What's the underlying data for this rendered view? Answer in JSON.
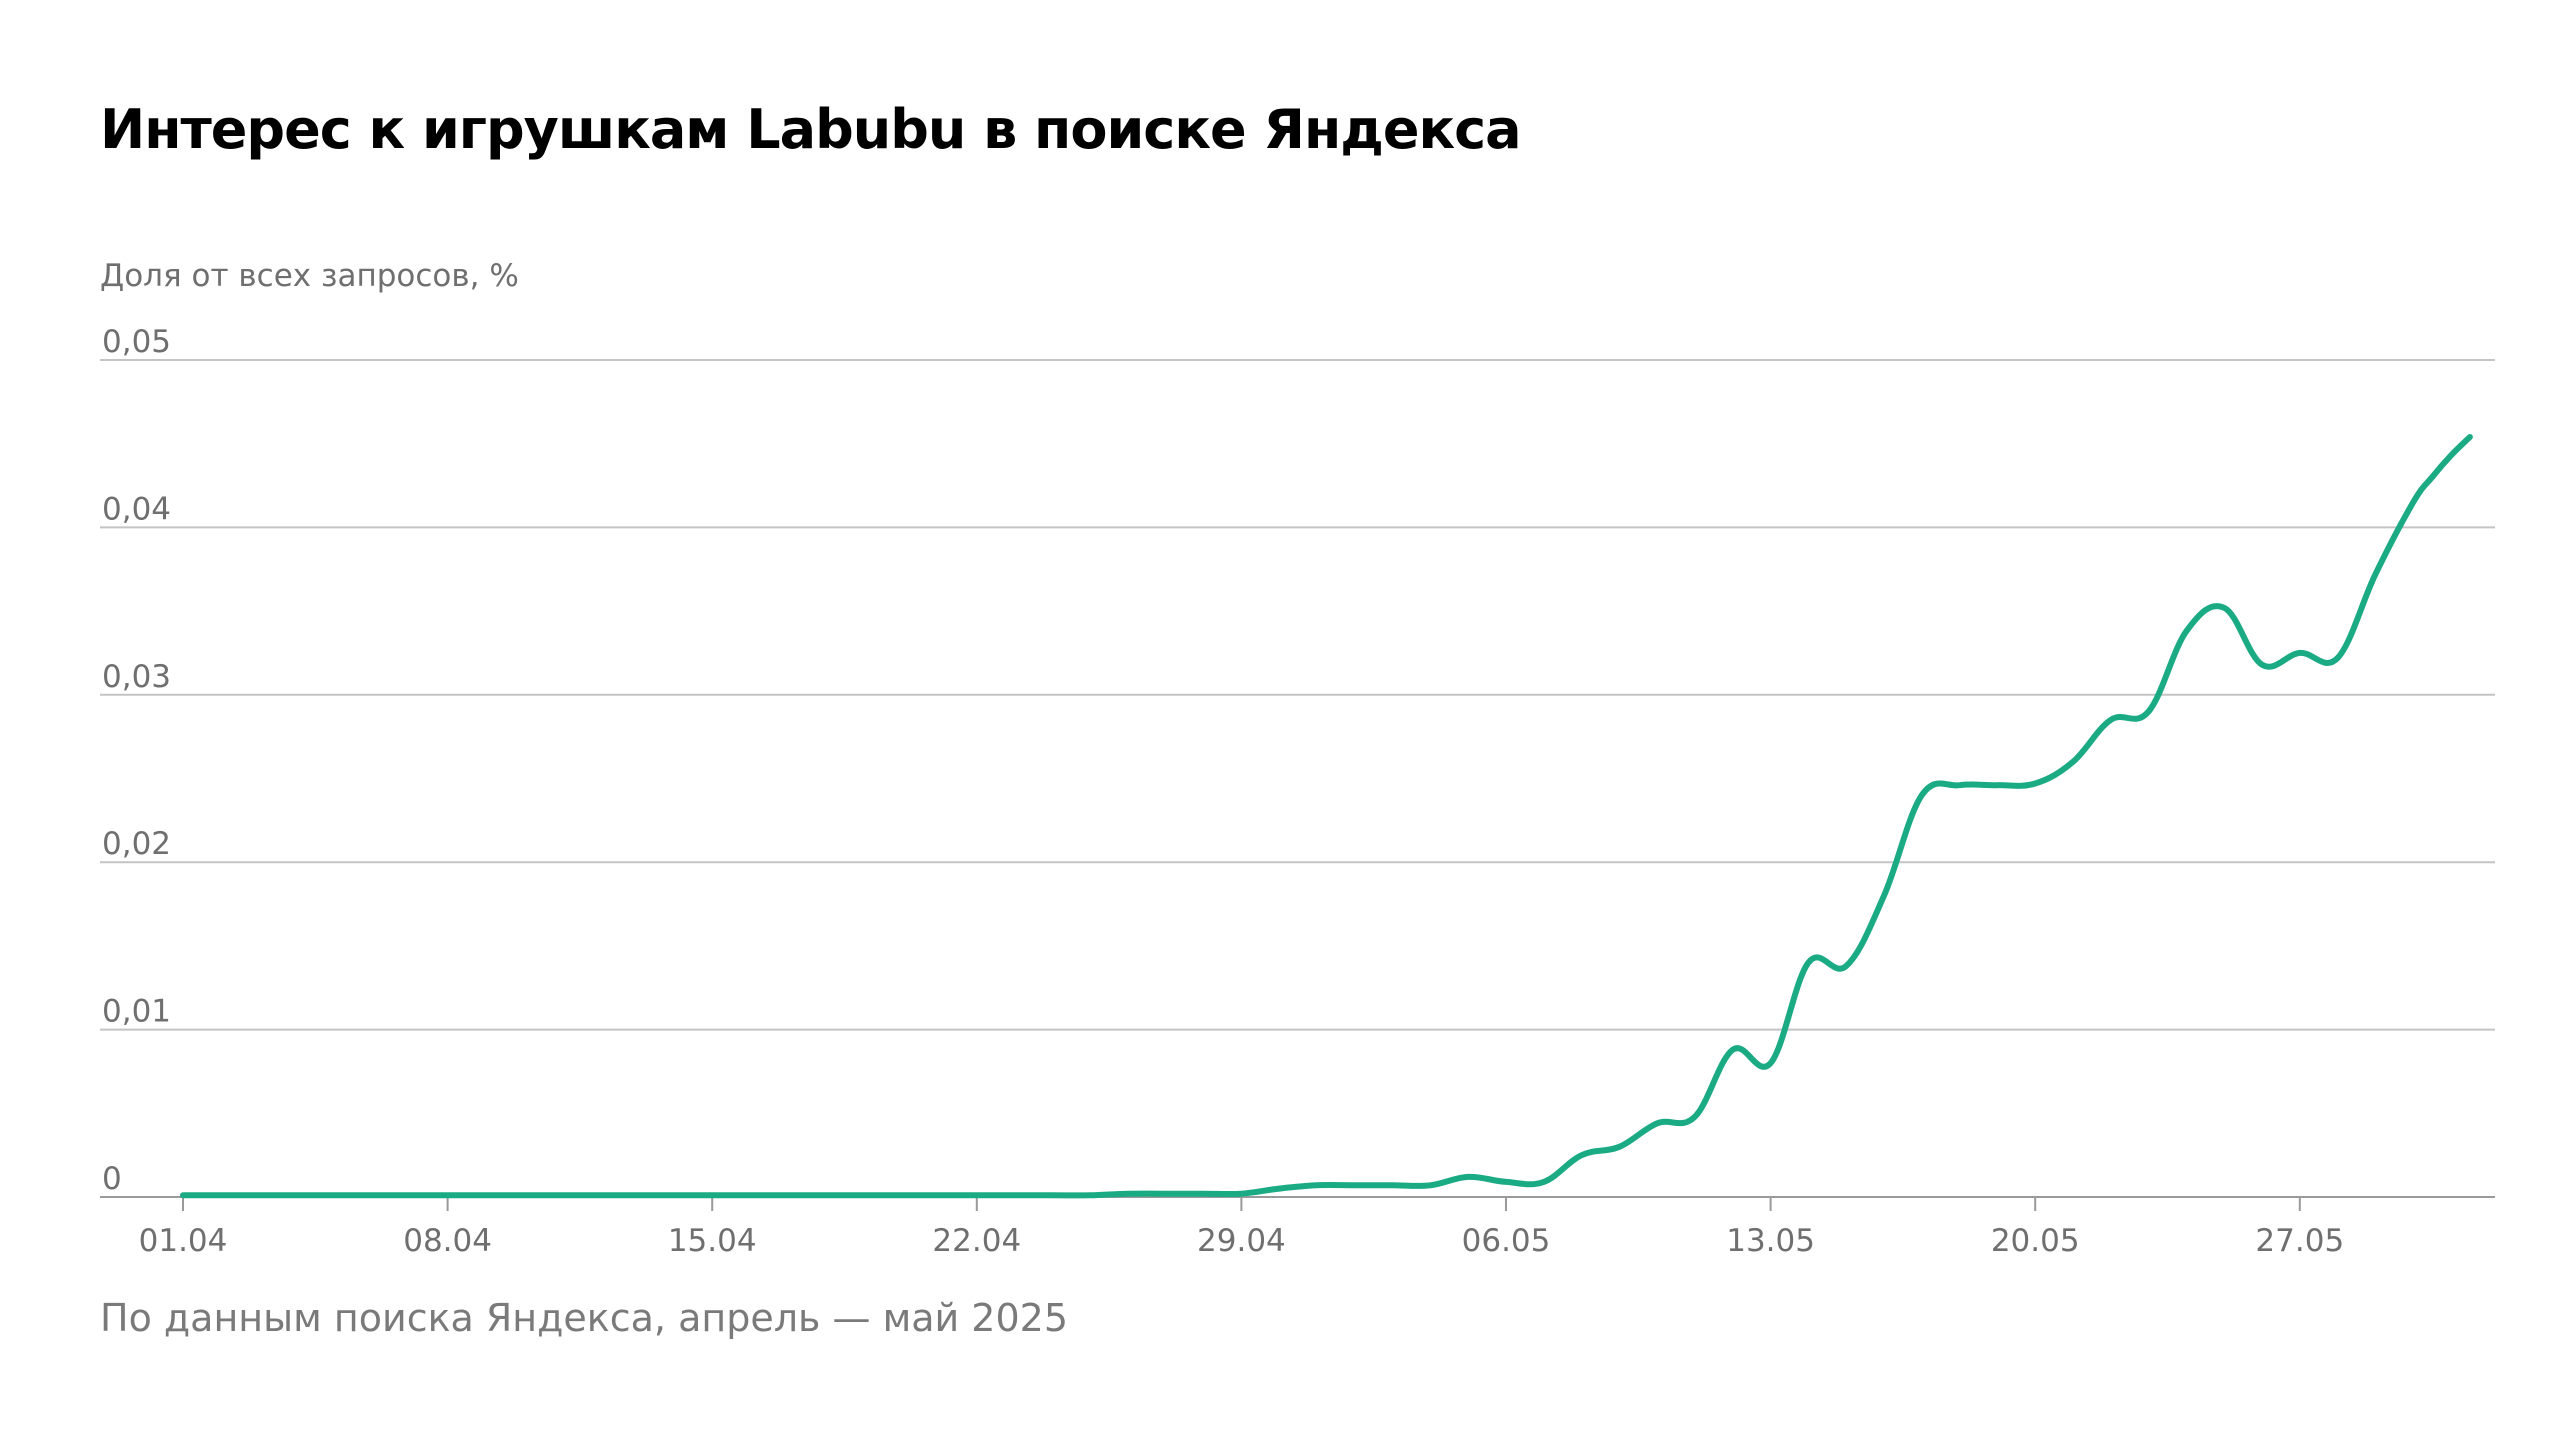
{
  "chart_data": {
    "type": "line",
    "title": "Интерес к игрушкам Labubu в поиске Яндекса",
    "ylabel": "Доля от всех запросов, %",
    "xlabel": "",
    "source": "По данным поиска Яндекса, апрель — май 2025",
    "ylim": [
      0,
      0.05
    ],
    "yticks": [
      0,
      0.01,
      0.02,
      0.03,
      0.04,
      0.05
    ],
    "ytick_labels": [
      "0",
      "0,01",
      "0,02",
      "0,03",
      "0,04",
      "0,05"
    ],
    "xtick_labels": [
      "01.04",
      "08.04",
      "15.04",
      "22.04",
      "29.04",
      "06.05",
      "13.05",
      "20.05",
      "27.05"
    ],
    "xtick_days": [
      1,
      8,
      15,
      22,
      29,
      36,
      43,
      50,
      57
    ],
    "xlim_days": [
      1,
      61.5
    ],
    "grid": true,
    "line_color": "#1aab84",
    "series": [
      {
        "x": [
          1,
          2,
          3,
          4,
          5,
          6,
          7,
          8,
          9,
          10,
          11,
          12,
          13,
          14,
          15,
          16,
          17,
          18,
          19,
          20,
          21,
          22,
          23,
          24,
          25,
          26,
          27,
          28,
          29,
          30,
          31,
          32,
          33,
          34,
          35,
          36,
          37,
          38,
          39,
          40,
          41,
          42,
          43,
          44,
          45,
          46,
          47,
          48,
          49,
          50,
          51,
          52,
          53,
          54,
          55,
          56,
          57,
          58,
          59,
          60,
          60.5,
          61,
          61.5
        ],
        "y": [
          0.0001,
          0.0001,
          0.0001,
          0.0001,
          0.0001,
          0.0001,
          0.0001,
          0.0001,
          0.0001,
          0.0001,
          0.0001,
          0.0001,
          0.0001,
          0.0001,
          0.0001,
          0.0001,
          0.0001,
          0.0001,
          0.0001,
          0.0001,
          0.0001,
          0.0001,
          0.0001,
          0.0001,
          0.0001,
          0.0002,
          0.0002,
          0.0002,
          0.0002,
          0.0005,
          0.0007,
          0.0007,
          0.0007,
          0.0007,
          0.0012,
          0.0009,
          0.0009,
          0.0025,
          0.003,
          0.0044,
          0.0048,
          0.0088,
          0.008,
          0.014,
          0.0138,
          0.018,
          0.024,
          0.0246,
          0.0246,
          0.0247,
          0.026,
          0.0285,
          0.029,
          0.0338,
          0.0352,
          0.0318,
          0.0325,
          0.0322,
          0.0372,
          0.0415,
          0.043,
          0.0443,
          0.0454
        ]
      }
    ]
  }
}
